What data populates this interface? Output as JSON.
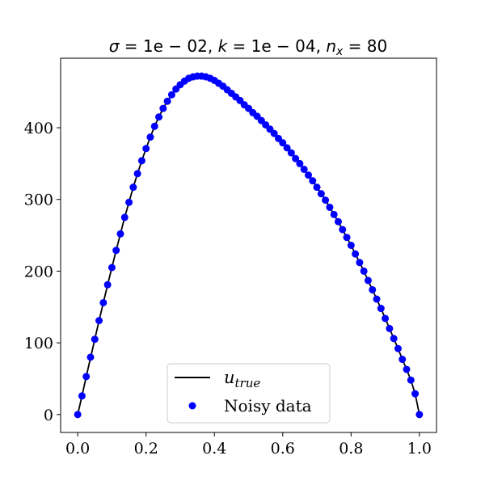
{
  "chart_data": {
    "type": "line",
    "title": {
      "sigma_symbol": "σ",
      "sigma_value": "1e − 02",
      "k_symbol": "k",
      "k_value": "1e − 04",
      "n_symbol": "n",
      "n_sub": "x",
      "n_value": "80"
    },
    "xlim": [
      -0.05,
      1.05
    ],
    "ylim": [
      -25,
      497
    ],
    "xticks": [
      0.0,
      0.2,
      0.4,
      0.6,
      0.8,
      1.0
    ],
    "xtick_labels": [
      "0.0",
      "0.2",
      "0.4",
      "0.6",
      "0.8",
      "1.0"
    ],
    "yticks": [
      0,
      100,
      200,
      300,
      400
    ],
    "ytick_labels": [
      "0",
      "100",
      "200",
      "300",
      "400"
    ],
    "grid": false,
    "legend": {
      "placement": "lower-center",
      "entries": [
        {
          "label_base": "u",
          "label_sub": "true",
          "style": "line",
          "color": "#000000"
        },
        {
          "label": "Noisy data",
          "style": "marker",
          "color": "#0000ff"
        }
      ]
    },
    "series": [
      {
        "name": "u_true",
        "style": "line",
        "color": "#000000",
        "x": [
          0.0,
          0.0125,
          0.025,
          0.0375,
          0.05,
          0.0625,
          0.075,
          0.0875,
          0.1,
          0.1125,
          0.125,
          0.1375,
          0.15,
          0.1625,
          0.175,
          0.1875,
          0.2,
          0.2125,
          0.225,
          0.2375,
          0.25,
          0.2625,
          0.275,
          0.2875,
          0.3,
          0.3125,
          0.325,
          0.3375,
          0.35,
          0.3625,
          0.375,
          0.3875,
          0.4,
          0.4125,
          0.425,
          0.4375,
          0.45,
          0.4625,
          0.475,
          0.4875,
          0.5,
          0.5125,
          0.525,
          0.5375,
          0.55,
          0.5625,
          0.575,
          0.5875,
          0.6,
          0.6125,
          0.625,
          0.6375,
          0.65,
          0.6625,
          0.675,
          0.6875,
          0.7,
          0.7125,
          0.725,
          0.7375,
          0.75,
          0.7625,
          0.775,
          0.7875,
          0.8,
          0.8125,
          0.825,
          0.8375,
          0.85,
          0.8625,
          0.875,
          0.8875,
          0.9,
          0.9125,
          0.925,
          0.9375,
          0.95,
          0.9625,
          0.975,
          0.9875,
          1.0
        ],
        "y": [
          0,
          26,
          53,
          79,
          105,
          131,
          156,
          181,
          205,
          229,
          252,
          275,
          296,
          317,
          336,
          354,
          371,
          387,
          402,
          415,
          427,
          437,
          446,
          454,
          460,
          465,
          469,
          471,
          472,
          472,
          471,
          469,
          466,
          462,
          458,
          453,
          448,
          443,
          438,
          432,
          427,
          421,
          416,
          410,
          404,
          398,
          392,
          385,
          379,
          372,
          365,
          357,
          350,
          342,
          334,
          326,
          317,
          308,
          299,
          289,
          279,
          269,
          258,
          247,
          236,
          224,
          212,
          200,
          187,
          174,
          161,
          148,
          134,
          120,
          106,
          92,
          77,
          63,
          48,
          29,
          0
        ]
      },
      {
        "name": "Noisy data",
        "style": "scatter",
        "color": "#0000ff",
        "x": [
          0.0,
          0.0125,
          0.025,
          0.0375,
          0.05,
          0.0625,
          0.075,
          0.0875,
          0.1,
          0.1125,
          0.125,
          0.1375,
          0.15,
          0.1625,
          0.175,
          0.1875,
          0.2,
          0.2125,
          0.225,
          0.2375,
          0.25,
          0.2625,
          0.275,
          0.2875,
          0.3,
          0.3125,
          0.325,
          0.3375,
          0.35,
          0.3625,
          0.375,
          0.3875,
          0.4,
          0.4125,
          0.425,
          0.4375,
          0.45,
          0.4625,
          0.475,
          0.4875,
          0.5,
          0.5125,
          0.525,
          0.5375,
          0.55,
          0.5625,
          0.575,
          0.5875,
          0.6,
          0.6125,
          0.625,
          0.6375,
          0.65,
          0.6625,
          0.675,
          0.6875,
          0.7,
          0.7125,
          0.725,
          0.7375,
          0.75,
          0.7625,
          0.775,
          0.7875,
          0.8,
          0.8125,
          0.825,
          0.8375,
          0.85,
          0.8625,
          0.875,
          0.8875,
          0.9,
          0.9125,
          0.925,
          0.9375,
          0.95,
          0.9625,
          0.975,
          0.9875,
          1.0
        ],
        "y": [
          0,
          26,
          53,
          80,
          105,
          131,
          156,
          181,
          205,
          229,
          252,
          275,
          296,
          317,
          336,
          354,
          371,
          387,
          402,
          415,
          427,
          437,
          446,
          454,
          460,
          465,
          469,
          471,
          472,
          472,
          471,
          469,
          466,
          462,
          458,
          453,
          448,
          443,
          438,
          432,
          427,
          421,
          416,
          410,
          404,
          398,
          392,
          385,
          379,
          372,
          365,
          357,
          350,
          342,
          334,
          326,
          317,
          308,
          299,
          289,
          279,
          269,
          258,
          247,
          236,
          224,
          212,
          200,
          187,
          174,
          161,
          148,
          134,
          120,
          106,
          92,
          77,
          63,
          48,
          29,
          0
        ]
      }
    ]
  }
}
